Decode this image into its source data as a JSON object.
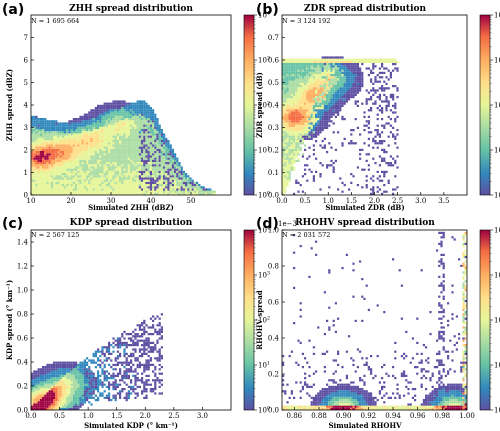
{
  "chart_data": [
    {
      "id": "a",
      "type": "heatmap",
      "panel_label": "(a)",
      "title": "ZHH spread distribution",
      "xlabel": "Simulated ZHH (dBZ)",
      "ylabel": "ZHH spread (dBZ)",
      "n_label": "N = 1 695 664",
      "xlim": [
        10,
        60
      ],
      "ylim": [
        0,
        8
      ],
      "xticks": [
        10,
        20,
        30,
        40,
        50
      ],
      "yticks": [
        0,
        1,
        2,
        3,
        4,
        5,
        6,
        7
      ],
      "colorbar": {
        "scale": "log",
        "range": [
          1,
          10000
        ],
        "ticks": [
          "10^0",
          "10^1",
          "10^2",
          "10^3",
          "10^4"
        ]
      },
      "shape": {
        "kind": "upper_envelope",
        "envelope": [
          [
            10,
            3.6
          ],
          [
            14,
            3.4
          ],
          [
            20,
            3.2
          ],
          [
            25,
            3.4
          ],
          [
            30,
            3.7
          ],
          [
            35,
            4.1
          ],
          [
            38,
            4.3
          ],
          [
            41,
            3.8
          ],
          [
            43,
            3.0
          ],
          [
            46,
            2.0
          ],
          [
            49,
            1.0
          ],
          [
            53,
            0.4
          ],
          [
            56,
            0.2
          ]
        ],
        "cores": [
          [
            12,
            1.7,
            1.0
          ],
          [
            18,
            2.0,
            0.7
          ],
          [
            25,
            2.5,
            0.6
          ],
          [
            32,
            3.2,
            0.5
          ]
        ]
      }
    },
    {
      "id": "b",
      "type": "heatmap",
      "panel_label": "(b)",
      "title": "ZDR spread distribution",
      "xlabel": "Simulated ZDR (dB)",
      "ylabel": "ZDR spread (dB)",
      "n_label": "N = 3 124 192",
      "xlim": [
        0,
        4
      ],
      "ylim": [
        0,
        0.8
      ],
      "xticks": [
        0.0,
        0.5,
        1.0,
        1.5,
        2.0,
        2.5,
        3.0,
        3.5
      ],
      "yticks": [
        0.0,
        0.1,
        0.2,
        0.3,
        0.4,
        0.5,
        0.6,
        0.7
      ],
      "colorbar": {
        "scale": "log",
        "range": [
          1,
          10000
        ],
        "ticks": [
          "10^0",
          "10^1",
          "10^2",
          "10^3",
          "10^4"
        ]
      },
      "shape": {
        "kind": "wedge",
        "envelope": [
          [
            0.0,
            0.6
          ],
          [
            0.5,
            0.6
          ],
          [
            1.0,
            0.6
          ],
          [
            1.5,
            0.6
          ],
          [
            2.0,
            0.6
          ],
          [
            2.5,
            0.6
          ]
        ],
        "cores": [
          [
            0.3,
            0.35,
            1.0
          ],
          [
            0.7,
            0.45,
            0.8
          ],
          [
            1.1,
            0.52,
            0.6
          ]
        ]
      }
    },
    {
      "id": "c",
      "type": "heatmap",
      "panel_label": "(c)",
      "title": "KDP spread distribution",
      "xlabel": "Simulated KDP (° km⁻¹)",
      "ylabel": "KDP spread (° km⁻¹)",
      "n_label": "N = 2 567 125",
      "xlim": [
        0,
        3.5
      ],
      "ylim": [
        0,
        1.5
      ],
      "xticks": [
        0.0,
        0.5,
        1.0,
        1.5,
        2.0,
        2.5,
        3.0
      ],
      "yticks": [
        0.0,
        0.2,
        0.4,
        0.6,
        0.8,
        1.0,
        1.2,
        1.4
      ],
      "colorbar": {
        "scale": "log",
        "range": [
          1,
          10000
        ],
        "ticks": [
          "10^0",
          "10^1",
          "10^2",
          "10^3",
          "10^4"
        ]
      },
      "shape": {
        "kind": "band",
        "envelope": [
          [
            0.0,
            0.02
          ],
          [
            0.5,
            0.25
          ],
          [
            1.0,
            0.45
          ],
          [
            1.5,
            0.62
          ],
          [
            2.0,
            0.75
          ],
          [
            2.3,
            0.85
          ]
        ],
        "cores": [
          [
            0.1,
            0.05,
            1.0
          ],
          [
            0.3,
            0.12,
            0.8
          ],
          [
            0.6,
            0.22,
            0.5
          ]
        ]
      }
    },
    {
      "id": "d",
      "type": "heatmap",
      "panel_label": "(d)",
      "title": "RHOHV spread distribution",
      "xlabel": "Simulated RHOHV",
      "ylabel": "RHOHV spread",
      "n_label": "N = 2 031 572",
      "offset_label": "1e−3",
      "xlim": [
        0.85,
        1.0
      ],
      "ylim": [
        0,
        1.0
      ],
      "xticks": [
        0.86,
        0.88,
        0.9,
        0.92,
        0.94,
        0.96,
        0.98,
        1.0
      ],
      "yticks": [
        0.0,
        0.2,
        0.4,
        0.6,
        0.8,
        1.0
      ],
      "colorbar": {
        "scale": "log",
        "range": [
          1,
          10000
        ],
        "ticks": [
          "10^0",
          "10^1",
          "10^2",
          "10^3",
          "10^4"
        ]
      },
      "shape": {
        "kind": "floor",
        "envelope": [
          [
            0.85,
            0.35
          ],
          [
            0.9,
            0.3
          ],
          [
            0.95,
            0.3
          ],
          [
            0.98,
            0.45
          ],
          [
            1.0,
            0.55
          ]
        ],
        "cores": [
          [
            0.9,
            0.005,
            1.0
          ],
          [
            0.99,
            0.005,
            1.0
          ]
        ]
      }
    }
  ]
}
